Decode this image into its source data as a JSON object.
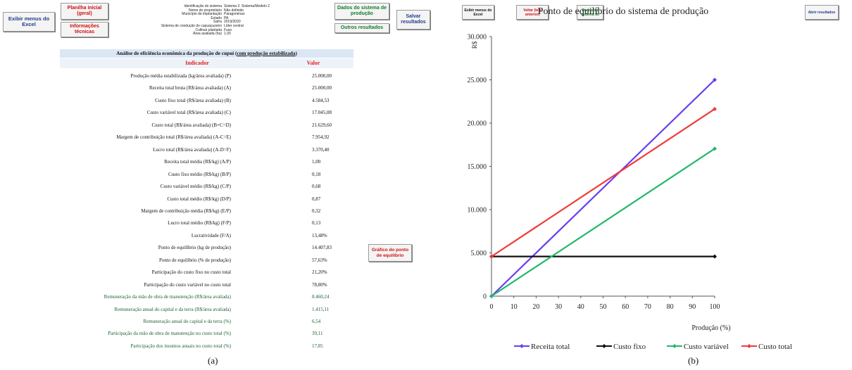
{
  "panel_a": {
    "buttons": {
      "exibir_menus": "Exibir menus do Excel",
      "planilha_inicial": "Planilha inicial (geral)",
      "informacoes_tecnicas": "Informações técnicas",
      "dados_sistema": "Dados do sistema de produção",
      "outros_resultados": "Outros resultados",
      "salvar_resultados": "Salvar resultados",
      "grafico_ponto": "Gráfico do ponto de equilíbrio"
    },
    "info": [
      {
        "k": "Identificação do sistema",
        "v": "Sistema 2: Sistema/Modelo 2"
      },
      {
        "k": "Nome do proprietário",
        "v": "Não definido"
      },
      {
        "k": "Município de implantação",
        "v": "Paragominas"
      },
      {
        "k": "Estado",
        "v": "PA"
      },
      {
        "k": "Safra",
        "v": "2019/2020"
      },
      {
        "k": "Sistema de condução do cupuaçuzeiro",
        "v": "Líder central"
      },
      {
        "k": "Cultivar plantada",
        "v": "Fuso"
      },
      {
        "k": "Área avaliada (ha)",
        "v": "1,00"
      }
    ],
    "table_title_prefix": "Análise de eficiência econômica da produção de cupuí (",
    "table_title_link": "com produção estabilizada",
    "table_title_suffix": ")",
    "header_indicador": "Indicador",
    "header_valor": "Valor",
    "rows": [
      {
        "label": "Produção média estabilizada (kg/área avaliada) (P)",
        "value": "25.000,00",
        "green": false
      },
      {
        "label": "Receita total bruta (R$/área avaliada) (A)",
        "value": "25.000,00",
        "green": false
      },
      {
        "label": "Custo fixo total (R$/área avaliada) (B)",
        "value": "4.584,53",
        "green": false
      },
      {
        "label": "Custo variável total (R$/área avaliada) (C)",
        "value": "17.045,08",
        "green": false
      },
      {
        "label": "Custo total (R$/área avaliada) (B+C=D)",
        "value": "21.629,60",
        "green": false
      },
      {
        "label": "Margem de contribuição total (R$/área avaliada) (A-C=E)",
        "value": "7.954,92",
        "green": false
      },
      {
        "label": "Lucro total (R$/área avaliada) (A-D=F)",
        "value": "3.370,40",
        "green": false
      },
      {
        "label": "Receita total média (R$/kg) (A/P)",
        "value": "1,00",
        "green": false
      },
      {
        "label": "Custo fixo médio (R$/kg) (B/P)",
        "value": "0,18",
        "green": false
      },
      {
        "label": "Custo variável médio (R$/kg) (C/P)",
        "value": "0,68",
        "green": false
      },
      {
        "label": "Custo total médio (R$/kg) (D/P)",
        "value": "0,87",
        "green": false
      },
      {
        "label": "Margem de contribuição média (R$/kg) (E/P)",
        "value": "0,32",
        "green": false
      },
      {
        "label": "Lucro total médio (R$/kg) (F/P)",
        "value": "0,13",
        "green": false
      },
      {
        "label": "Lucratividade (F/A)",
        "value": "13,48%",
        "green": false
      },
      {
        "label": "Ponto de equilíbrio (kg de produção)",
        "value": "14.407,83",
        "green": false
      },
      {
        "label": "Ponto de equilíbrio (% de produção)",
        "value": "57,63%",
        "green": false
      },
      {
        "label": "Participação do custo fixo no custo total",
        "value": "21,20%",
        "green": false
      },
      {
        "label": "Participação do custo variável no custo total",
        "value": "78,80%",
        "green": false
      },
      {
        "label": "Remuneração da mão de obra de manutenção (R$/área avaliada)",
        "value": "8.460,24",
        "green": true
      },
      {
        "label": "Remuneração anual do capital e da terra (R$/área avaliada)",
        "value": "1.415,11",
        "green": true
      },
      {
        "label": "Remuneração anual do capital e da terra (%)",
        "value": "6,54",
        "green": true
      },
      {
        "label": "Participação da mão de obra de manutenção no custo total (%)",
        "value": "39,11",
        "green": true
      },
      {
        "label": "Participação dos insumos anuais no custo total (%)",
        "value": "17,85",
        "green": true
      }
    ],
    "caption": "(a)"
  },
  "panel_b": {
    "buttons": {
      "exibir_menus": "Exibir menus do Excel",
      "voltar": "Voltar (tela anterior)",
      "dados_sistema": "Dados do sistema de",
      "abrir_resultados": "Abrir resultados"
    },
    "caption": "(b)"
  },
  "chart_data": {
    "type": "line",
    "title": "Ponto de equilíbrio do sistema de produção",
    "xlabel": "Produção (%)",
    "ylabel": "R$",
    "xlim": [
      0,
      100
    ],
    "ylim": [
      0,
      30000
    ],
    "x_ticks": [
      0,
      10,
      20,
      30,
      40,
      50,
      60,
      70,
      80,
      90,
      100
    ],
    "y_ticks": [
      0,
      5000,
      10000,
      15000,
      20000,
      25000,
      30000
    ],
    "y_tick_labels": [
      "0",
      "5.000",
      "10.000",
      "15.000",
      "20.000",
      "25.000",
      "30.000"
    ],
    "grid": false,
    "legend_position": "bottom",
    "series": [
      {
        "name": "Receita total",
        "color": "#6a3df0",
        "x": [
          0,
          100
        ],
        "y": [
          0,
          25000
        ]
      },
      {
        "name": "Custo fixo",
        "color": "#111111",
        "x": [
          0,
          100
        ],
        "y": [
          4584.53,
          4584.53
        ]
      },
      {
        "name": "Custo variável",
        "color": "#1fb86a",
        "x": [
          0,
          100
        ],
        "y": [
          0,
          17045.08
        ]
      },
      {
        "name": "Custo total",
        "color": "#f03a3a",
        "x": [
          0,
          100
        ],
        "y": [
          4584.53,
          21629.6
        ]
      }
    ]
  }
}
